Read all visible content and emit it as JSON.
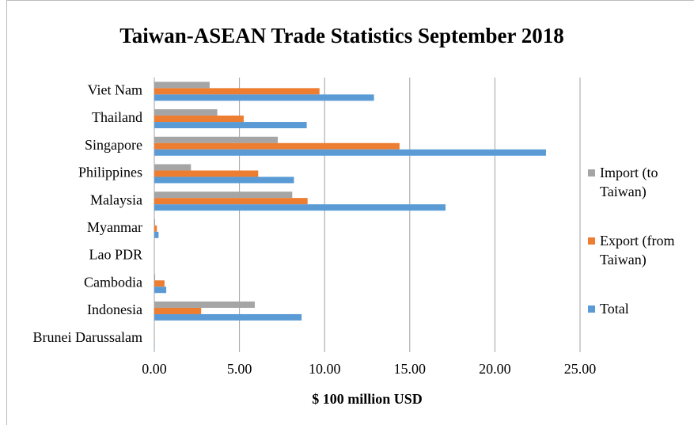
{
  "chart_data": {
    "type": "barh",
    "title": "Taiwan-ASEAN  Trade Statistics September 2018",
    "x_label": "$ 100 million USD",
    "categories": [
      "Viet Nam",
      "Thailand",
      "Singapore",
      "Philippines",
      "Malaysia",
      "Myanmar",
      "Lao PDR",
      "Cambodia",
      "Indonesia",
      "Brunei Darussalam"
    ],
    "series": [
      {
        "name": "Import (to Taiwan)",
        "color": "#a5a5a5",
        "values": [
          3.25,
          3.7,
          7.25,
          2.15,
          8.1,
          0.05,
          0,
          0.05,
          5.9,
          0.01
        ]
      },
      {
        "name": "Export (from Taiwan)",
        "color": "#ed7d31",
        "values": [
          9.7,
          5.25,
          14.4,
          6.1,
          9.0,
          0.15,
          0,
          0.6,
          2.75,
          0.01
        ]
      },
      {
        "name": "Total",
        "color": "#5b9bd5",
        "values": [
          12.9,
          8.95,
          23.0,
          8.2,
          17.1,
          0.25,
          0,
          0.7,
          8.65,
          0.02
        ]
      }
    ],
    "xlim": [
      0,
      25
    ],
    "xticks": [
      {
        "value": 0,
        "label": "0.00"
      },
      {
        "value": 5,
        "label": "5.00"
      },
      {
        "value": 10,
        "label": "10.00"
      },
      {
        "value": 15,
        "label": "15.00"
      },
      {
        "value": 20,
        "label": "20.00"
      },
      {
        "value": 25,
        "label": "25.00"
      }
    ],
    "grid": true,
    "legend": "right"
  }
}
